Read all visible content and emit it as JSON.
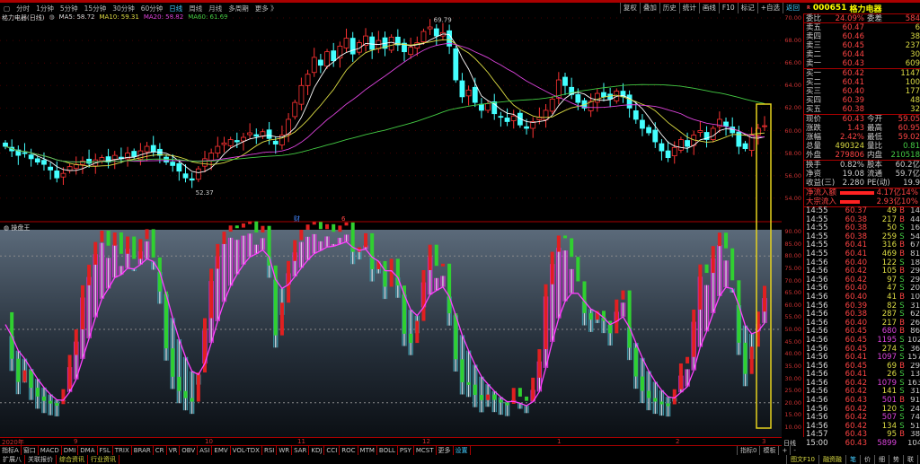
{
  "toolbar": {
    "items": [
      "分时",
      "1分钟",
      "5分钟",
      "15分钟",
      "30分钟",
      "60分钟",
      "日线",
      "周线",
      "月线",
      "多周期",
      "更多 》"
    ],
    "active": "日线",
    "right": [
      "复权",
      "叠加",
      "历史",
      "统计",
      "画线",
      "F10",
      "标记",
      "+自选",
      "返回"
    ]
  },
  "info": {
    "name": "格力电器(日线)",
    "ma5": "MA5: 58.72",
    "ma10": "MA10: 59.31",
    "ma20": "MA20: 58.82",
    "ma60": "MA60: 61.69"
  },
  "colors": {
    "up": "#ff3333",
    "down": "#44ffff",
    "ma5": "#ffffff",
    "ma10": "#dddd44",
    "ma20": "#dd44dd",
    "ma60": "#44cc44",
    "highlight": "#e6d21e"
  },
  "chart_data": {
    "type": "candlestick",
    "price_axis": [
      "70.00",
      "68.00",
      "66.00",
      "64.00",
      "62.00",
      "60.00",
      "58.00",
      "56.00",
      "54.00"
    ],
    "high_label": "69.79",
    "low_label": "52.37",
    "markers": [
      "财",
      "6"
    ],
    "closes": [
      58.6,
      58.2,
      57.8,
      58.0,
      57.5,
      57.2,
      57.0,
      56.5,
      55.8,
      56.2,
      56.8,
      57.0,
      57.3,
      57.1,
      57.4,
      57.6,
      57.2,
      57.8,
      57.5,
      58.0,
      57.7,
      58.2,
      58.6,
      58.1,
      57.8,
      57.2,
      56.9,
      56.4,
      55.8,
      55.6,
      56.6,
      57.5,
      58.0,
      58.6,
      58.9,
      59.2,
      59.0,
      59.4,
      59.8,
      59.5,
      59.9,
      59.3,
      58.8,
      59.6,
      61.0,
      62.5,
      64.0,
      65.0,
      66.5,
      65.8,
      67.0,
      66.2,
      67.5,
      68.2,
      66.8,
      67.8,
      68.4,
      67.2,
      68.0,
      67.3,
      68.3,
      67.6,
      67.0,
      67.4,
      67.8,
      68.8,
      69.2,
      68.4,
      68.7,
      67.5,
      64.5,
      63.0,
      63.6,
      62.5,
      61.8,
      62.4,
      61.5,
      61.2,
      60.8,
      61.3,
      60.5,
      60.2,
      60.8,
      61.2,
      61.8,
      62.8,
      64.5,
      64.0,
      63.2,
      62.5,
      62.0,
      62.6,
      63.3,
      63.0,
      62.8,
      63.5,
      63.0,
      62.0,
      61.0,
      60.2,
      59.8,
      59.0,
      58.2,
      57.6,
      58.5,
      59.2,
      58.6,
      59.6,
      60.0,
      59.2,
      60.2,
      61.0,
      60.4,
      59.8,
      58.6,
      58.4,
      59.6,
      60.2,
      60.43
    ],
    "indicator_title": "操盘王",
    "indicator_axis": [
      "90.00",
      "85.00",
      "80.00",
      "75.00",
      "70.00",
      "65.00",
      "60.00",
      "55.00",
      "50.00",
      "45.00",
      "40.00",
      "35.00",
      "30.00",
      "25.00",
      "20.00",
      "15.00",
      "10.00"
    ],
    "date_axis": [
      "2020年",
      "9",
      "10",
      "11",
      "12",
      "1",
      "2",
      "3"
    ]
  },
  "quote": {
    "code": "000651",
    "name": "格力电器",
    "badge": "R",
    "weibi": {
      "l": "委比",
      "v": "24.09%",
      "l2": "委差",
      "v2": "584"
    },
    "sell": [
      {
        "l": "卖五",
        "p": "60.47",
        "v": "6"
      },
      {
        "l": "卖四",
        "p": "60.46",
        "v": "38"
      },
      {
        "l": "卖三",
        "p": "60.45",
        "v": "237"
      },
      {
        "l": "卖二",
        "p": "60.44",
        "v": "30"
      },
      {
        "l": "卖一",
        "p": "60.43",
        "v": "609"
      }
    ],
    "buy": [
      {
        "l": "买一",
        "p": "60.42",
        "v": "1147"
      },
      {
        "l": "买二",
        "p": "60.41",
        "v": "100"
      },
      {
        "l": "买三",
        "p": "60.40",
        "v": "177"
      },
      {
        "l": "买四",
        "p": "60.39",
        "v": "48"
      },
      {
        "l": "买五",
        "p": "60.38",
        "v": "32"
      }
    ],
    "stats": [
      {
        "l": "现价",
        "v": "60.43",
        "l2": "今开",
        "v2": "59.05"
      },
      {
        "l": "涨跌",
        "v": "1.43",
        "l2": "最高",
        "v2": "60.95"
      },
      {
        "l": "涨幅",
        "v": "2.42%",
        "l2": "最低",
        "v2": "59.02"
      },
      {
        "l": "总量",
        "v": "490324",
        "l2": "量比",
        "v2": "0.81"
      },
      {
        "l": "外盘",
        "v": "279806",
        "l2": "内盘",
        "v2": "210518"
      }
    ],
    "stats2": [
      {
        "l": "换手",
        "v": "0.82%",
        "l2": "股本",
        "v2": "60.2亿"
      },
      {
        "l": "净资",
        "v": "19.08",
        "l2": "流通",
        "v2": "59.7亿"
      },
      {
        "l": "收益(三)",
        "v": "2.280",
        "l2": "PE(动)",
        "v2": "19.9"
      }
    ],
    "flow": [
      {
        "l": "净流入额",
        "v": "4.17亿",
        "p": "14%"
      },
      {
        "l": "大宗流入",
        "v": "2.93亿",
        "p": "10%"
      }
    ]
  },
  "trades": [
    [
      "14:55",
      "60.37",
      "49",
      "B",
      "14"
    ],
    [
      "14:55",
      "60.38",
      "217",
      "B",
      "44"
    ],
    [
      "14:55",
      "60.38",
      "50",
      "S",
      "16"
    ],
    [
      "14:55",
      "60.38",
      "259",
      "S",
      "54"
    ],
    [
      "14:55",
      "60.41",
      "316",
      "B",
      "67"
    ],
    [
      "14:55",
      "60.41",
      "469",
      "B",
      "81"
    ],
    [
      "14:56",
      "60.40",
      "122",
      "S",
      "18"
    ],
    [
      "14:56",
      "60.42",
      "105",
      "B",
      "29"
    ],
    [
      "14:56",
      "60.42",
      "97",
      "S",
      "29"
    ],
    [
      "14:56",
      "60.40",
      "47",
      "S",
      "20"
    ],
    [
      "14:56",
      "60.40",
      "41",
      "B",
      "10"
    ],
    [
      "14:56",
      "60.39",
      "82",
      "S",
      "31"
    ],
    [
      "14:56",
      "60.38",
      "287",
      "S",
      "62"
    ],
    [
      "14:56",
      "60.40",
      "217",
      "B",
      "26"
    ],
    [
      "14:56",
      "60.45",
      "680",
      "B",
      "86"
    ],
    [
      "14:56",
      "60.45",
      "1195",
      "S",
      "102"
    ],
    [
      "14:56",
      "60.45",
      "274",
      "S",
      "36"
    ],
    [
      "14:56",
      "60.41",
      "1097",
      "S",
      "157"
    ],
    [
      "14:56",
      "60.45",
      "69",
      "B",
      "29"
    ],
    [
      "14:56",
      "60.41",
      "26",
      "S",
      "13"
    ],
    [
      "14:56",
      "60.42",
      "1079",
      "S",
      "163"
    ],
    [
      "14:56",
      "60.42",
      "141",
      "S",
      "31"
    ],
    [
      "14:56",
      "60.43",
      "501",
      "B",
      "91"
    ],
    [
      "14:56",
      "60.42",
      "120",
      "S",
      "24"
    ],
    [
      "14:56",
      "60.42",
      "507",
      "S",
      "74"
    ],
    [
      "14:56",
      "60.42",
      "134",
      "S",
      "51"
    ],
    [
      "14:57",
      "60.43",
      "95",
      "B",
      "38"
    ],
    [
      "15:00",
      "60.43",
      "5899",
      "",
      "1040"
    ]
  ],
  "tabs": [
    "指标A",
    "窗口",
    "MACD",
    "DMI",
    "DMA",
    "FSL",
    "TRIX",
    "BRAR",
    "CR",
    "VR",
    "OBV",
    "ASI",
    "EMV",
    "VOL-TDX",
    "RSI",
    "WR",
    "SAR",
    "KDJ",
    "CCI",
    "ROC",
    "MTM",
    "BOLL",
    "PSY",
    "MCST",
    "更多",
    "设置"
  ],
  "tabs2": [
    "扩展八",
    "关联报价",
    "综合资讯",
    "行业资讯"
  ],
  "right_tabs": [
    "指标0",
    "模板",
    "+",
    "-"
  ],
  "period_label": "日线",
  "panel_tabs": [
    "图文F10",
    "融资融",
    "笔",
    "价",
    "细",
    "势",
    "联",
    "值",
    "主",
    "筹"
  ]
}
